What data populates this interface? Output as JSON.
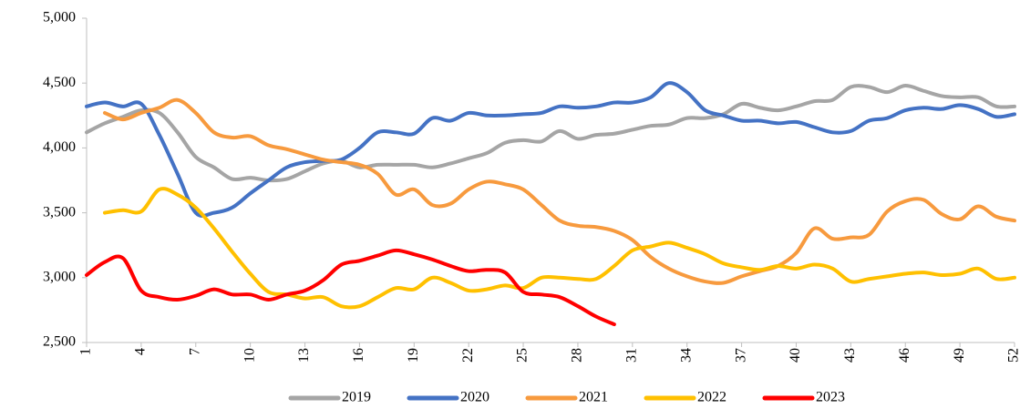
{
  "chart_data": {
    "type": "line",
    "x": [
      1,
      2,
      3,
      4,
      5,
      6,
      7,
      8,
      9,
      10,
      11,
      12,
      13,
      14,
      15,
      16,
      17,
      18,
      19,
      20,
      21,
      22,
      23,
      24,
      25,
      26,
      27,
      28,
      29,
      30,
      31,
      32,
      33,
      34,
      35,
      36,
      37,
      38,
      39,
      40,
      41,
      42,
      43,
      44,
      45,
      46,
      47,
      48,
      49,
      50,
      51,
      52
    ],
    "xlim": [
      1,
      52
    ],
    "xticks": [
      1,
      4,
      7,
      10,
      13,
      16,
      19,
      22,
      25,
      28,
      31,
      34,
      37,
      40,
      43,
      46,
      49,
      52
    ],
    "ylim": [
      2500,
      5000
    ],
    "yticks": [
      {
        "value": 2500,
        "label": "2,500"
      },
      {
        "value": 3000,
        "label": "3,000"
      },
      {
        "value": 3500,
        "label": "3,500"
      },
      {
        "value": 4000,
        "label": "4,000"
      },
      {
        "value": 4500,
        "label": "4,500"
      },
      {
        "value": 5000,
        "label": "5,000"
      }
    ],
    "grid": false,
    "legend": "bottom",
    "series": [
      {
        "name": "2019",
        "color": "#a5a5a5",
        "values": [
          4120,
          4190,
          4240,
          4290,
          4270,
          4120,
          3930,
          3850,
          3760,
          3770,
          3750,
          3760,
          3820,
          3880,
          3900,
          3850,
          3870,
          3870,
          3870,
          3850,
          3880,
          3920,
          3960,
          4040,
          4060,
          4050,
          4130,
          4070,
          4100,
          4110,
          4140,
          4170,
          4180,
          4230,
          4230,
          4260,
          4340,
          4310,
          4290,
          4320,
          4360,
          4370,
          4470,
          4470,
          4430,
          4480,
          4440,
          4400,
          4390,
          4390,
          4320,
          4320
        ]
      },
      {
        "name": "2020",
        "color": "#4472c4",
        "values": [
          4320,
          4350,
          4320,
          4340,
          4100,
          3800,
          3500,
          3500,
          3540,
          3650,
          3750,
          3850,
          3890,
          3900,
          3910,
          4000,
          4120,
          4120,
          4110,
          4230,
          4210,
          4270,
          4250,
          4250,
          4260,
          4270,
          4320,
          4310,
          4320,
          4350,
          4350,
          4390,
          4500,
          4430,
          4290,
          4250,
          4210,
          4210,
          4190,
          4200,
          4160,
          4120,
          4130,
          4210,
          4230,
          4290,
          4310,
          4300,
          4330,
          4300,
          4240,
          4260
        ]
      },
      {
        "name": "2021",
        "color": "#f79a3e",
        "values": [
          null,
          4270,
          4220,
          4270,
          4310,
          4370,
          4270,
          4120,
          4080,
          4090,
          4020,
          3990,
          3950,
          3910,
          3890,
          3870,
          3800,
          3640,
          3680,
          3560,
          3570,
          3680,
          3740,
          3720,
          3680,
          3560,
          3440,
          3400,
          3390,
          3360,
          3290,
          3160,
          3070,
          3010,
          2970,
          2960,
          3010,
          3050,
          3090,
          3190,
          3380,
          3300,
          3310,
          3330,
          3510,
          3590,
          3600,
          3490,
          3450,
          3550,
          3470,
          3440
        ]
      },
      {
        "name": "2022",
        "color": "#ffc000",
        "values": [
          null,
          3500,
          3520,
          3510,
          3680,
          3640,
          3540,
          3380,
          3200,
          3030,
          2890,
          2870,
          2840,
          2850,
          2780,
          2780,
          2850,
          2920,
          2910,
          3000,
          2960,
          2900,
          2910,
          2940,
          2920,
          3000,
          3000,
          2990,
          2990,
          3090,
          3210,
          3240,
          3270,
          3230,
          3180,
          3110,
          3080,
          3060,
          3090,
          3070,
          3100,
          3070,
          2970,
          2990,
          3010,
          3030,
          3040,
          3020,
          3030,
          3070,
          2990,
          3000
        ]
      },
      {
        "name": "2023",
        "color": "#ff0000",
        "values": [
          3020,
          3120,
          3150,
          2900,
          2850,
          2830,
          2860,
          2910,
          2870,
          2870,
          2830,
          2870,
          2900,
          2980,
          3100,
          3130,
          3170,
          3210,
          3180,
          3140,
          3090,
          3050,
          3060,
          3040,
          2890,
          2870,
          2850,
          2780,
          2700,
          2640,
          null,
          null,
          null,
          null,
          null,
          null,
          null,
          null,
          null,
          null,
          null,
          null,
          null,
          null,
          null,
          null,
          null,
          null,
          null,
          null,
          null,
          null
        ]
      }
    ]
  }
}
